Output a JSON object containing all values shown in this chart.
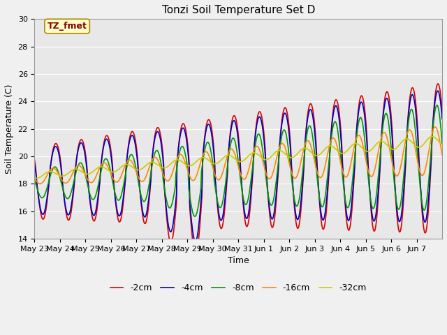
{
  "title": "Tonzi Soil Temperature Set D",
  "xlabel": "Time",
  "ylabel": "Soil Temperature (C)",
  "ylim": [
    14,
    30
  ],
  "x_tick_labels": [
    "May 23",
    "May 24",
    "May 25",
    "May 26",
    "May 27",
    "May 28",
    "May 29",
    "May 30",
    "May 31",
    "Jun 1",
    "Jun 2",
    "Jun 3",
    "Jun 4",
    "Jun 5",
    "Jun 6",
    "Jun 7"
  ],
  "legend_entries": [
    "-2cm",
    "-4cm",
    "-8cm",
    "-16cm",
    "-32cm"
  ],
  "line_colors": [
    "#dd0000",
    "#0000cc",
    "#009900",
    "#ff8800",
    "#cccc00"
  ],
  "annotation_text": "TZ_fmet",
  "annotation_color": "#880000",
  "annotation_bg": "#ffffcc",
  "annotation_border": "#aa8800",
  "bg_color": "#e8e8e8",
  "fig_bg": "#f0f0f0",
  "title_fontsize": 11,
  "tick_fontsize": 8,
  "legend_fontsize": 9
}
